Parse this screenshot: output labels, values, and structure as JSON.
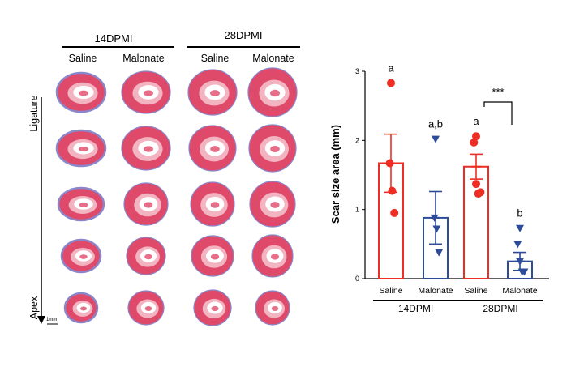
{
  "histology": {
    "group_labels": [
      "14DPMI",
      "28DPMI"
    ],
    "condition_labels": [
      "Saline",
      "Malonate",
      "Saline",
      "Malonate"
    ],
    "axis_top_label": "Ligature",
    "axis_bottom_label": "Apex",
    "scale_bar_label": "1mm",
    "colors": {
      "tissue": "#e04a6a",
      "tissue_light": "#f3b4c1",
      "fibrosis": "#8a86c9",
      "cavity": "#ffffff"
    }
  },
  "chart_data": {
    "type": "bar",
    "ylabel": "Scar size area (mm)",
    "xlabel": "",
    "ylim": [
      0,
      3
    ],
    "yticks": [
      "0",
      "1",
      "2",
      "3"
    ],
    "categories": [
      "Saline",
      "Malonate",
      "Saline",
      "Malonate"
    ],
    "groups": [
      {
        "label": "14DPMI",
        "categories": [
          0,
          1
        ]
      },
      {
        "label": "28DPMI",
        "categories": [
          2,
          3
        ]
      }
    ],
    "bars": [
      {
        "category": "Saline",
        "group": "14DPMI",
        "mean": 1.67,
        "sem": 0.42,
        "color": "#ee2e24",
        "marker": "circle",
        "points": [
          2.83,
          1.67,
          1.27,
          0.95
        ],
        "letter": "a"
      },
      {
        "category": "Malonate",
        "group": "14DPMI",
        "mean": 0.88,
        "sem": 0.38,
        "color": "#2e4b9a",
        "marker": "triangle-down",
        "points": [
          2.02,
          0.88,
          0.72,
          0.38
        ],
        "letter": "a,b"
      },
      {
        "category": "Saline",
        "group": "28DPMI",
        "mean": 1.62,
        "sem": 0.18,
        "color": "#ee2e24",
        "marker": "circle",
        "points": [
          2.06,
          1.97,
          1.37,
          1.23,
          1.25
        ],
        "letter": "a"
      },
      {
        "category": "Malonate",
        "group": "28DPMI",
        "mean": 0.25,
        "sem": 0.13,
        "color": "#2e4b9a",
        "marker": "triangle-down",
        "points": [
          0.73,
          0.5,
          0.25,
          0.1,
          0.1
        ],
        "letter": "b"
      }
    ],
    "significance": {
      "label": "***",
      "between": [
        2,
        3
      ]
    },
    "grid": false,
    "legend": "none"
  }
}
